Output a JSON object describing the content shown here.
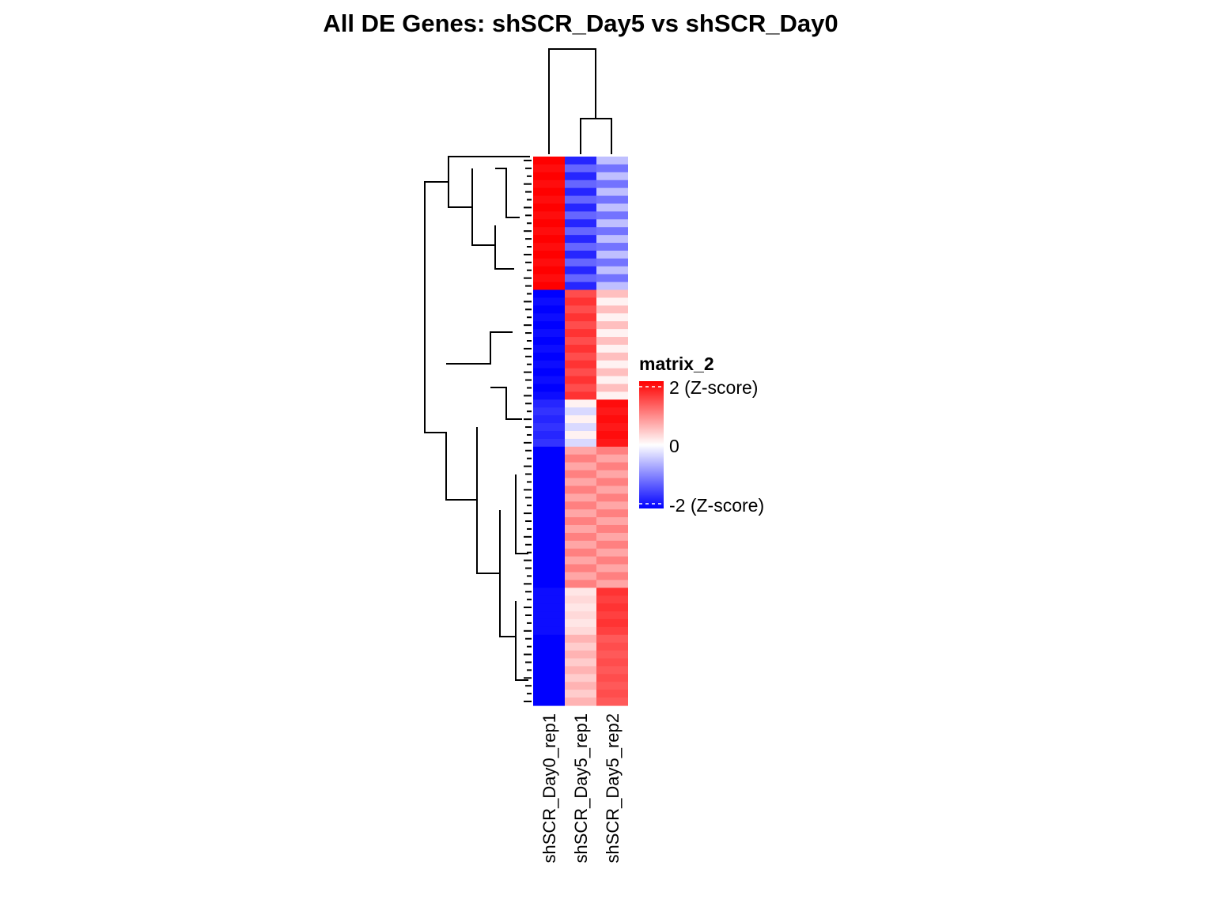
{
  "chart_data": {
    "type": "heatmap",
    "title": "All DE Genes: shSCR_Day5  vs  shSCR_Day0",
    "columns": [
      "shSCR_Day0_rep1",
      "shSCR_Day5_rep1",
      "shSCR_Day5_rep2"
    ],
    "row_clusters": [
      {
        "rows": 17,
        "values": [
          [
            2.0,
            -1.7,
            -0.5
          ],
          [
            1.9,
            -1.2,
            -1.1
          ]
        ]
      },
      {
        "rows": 14,
        "values": [
          [
            -2.0,
            1.4,
            0.5
          ],
          [
            -1.9,
            1.6,
            0.1
          ]
        ]
      },
      {
        "rows": 6,
        "values": [
          [
            -1.7,
            0.1,
            1.9
          ],
          [
            -1.6,
            -0.3,
            1.8
          ]
        ]
      },
      {
        "rows": 18,
        "values": [
          [
            -2.0,
            0.7,
            1.0
          ],
          [
            -2.0,
            1.0,
            0.7
          ]
        ]
      },
      {
        "rows": 6,
        "values": [
          [
            -1.9,
            0.2,
            1.6
          ],
          [
            -1.9,
            0.3,
            1.5
          ]
        ]
      },
      {
        "rows": 9,
        "values": [
          [
            -2.0,
            0.6,
            1.3
          ],
          [
            -2.0,
            0.4,
            1.4
          ]
        ]
      }
    ],
    "legend": {
      "title": "matrix_2",
      "scale": [
        -2,
        0,
        2
      ],
      "labels": [
        "2 (Z-score)",
        "0",
        "-2 (Z-score)"
      ],
      "colors": {
        "low": "#0000ff",
        "mid": "#ffffff",
        "high": "#ff0000"
      }
    }
  }
}
